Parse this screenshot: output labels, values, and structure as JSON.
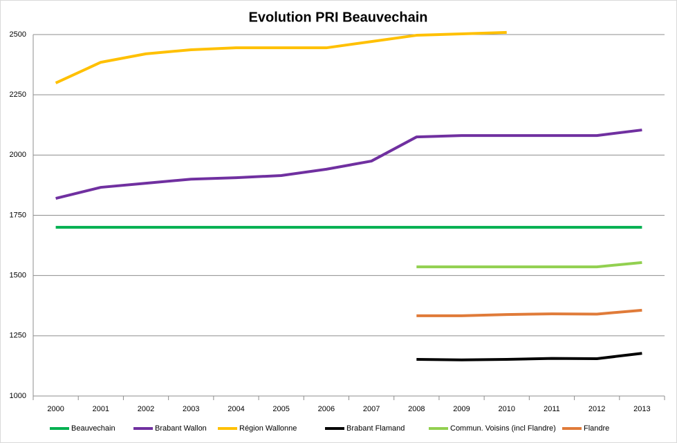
{
  "chart_data": {
    "type": "line",
    "title": "Evolution PRI Beauvechain",
    "categories": [
      "2000",
      "2001",
      "2002",
      "2003",
      "2004",
      "2005",
      "2006",
      "2007",
      "2008",
      "2009",
      "2010",
      "2011",
      "2012",
      "2013"
    ],
    "series": [
      {
        "name": "Beauvechain",
        "color": "#00b050",
        "values": [
          1700,
          1700,
          1700,
          1700,
          1700,
          1700,
          1700,
          1700,
          1700,
          1700,
          1700,
          1700,
          1700,
          1700
        ]
      },
      {
        "name": "Brabant Wallon",
        "color": "#7030a0",
        "values": [
          1820,
          1866,
          1883,
          1900,
          1906,
          1915,
          1941,
          1975,
          2075,
          2081,
          2081,
          2081,
          2081,
          2104
        ]
      },
      {
        "name": "Région Wallonne",
        "color": "#ffc000",
        "values": [
          2299,
          2385,
          2420,
          2437,
          2445,
          2445,
          2445,
          2471,
          2497,
          2503,
          2509,
          null,
          null,
          null
        ]
      },
      {
        "name": "Brabant Flamand",
        "color": "#000000",
        "values": [
          null,
          null,
          null,
          null,
          null,
          null,
          null,
          null,
          1152,
          1150,
          1152,
          1156,
          1155,
          1177
        ]
      },
      {
        "name": "Commun. Voisins (incl Flandre)",
        "color": "#92d050",
        "values": [
          null,
          null,
          null,
          null,
          null,
          null,
          null,
          null,
          1536,
          1536,
          1536,
          1536,
          1536,
          1554
        ]
      },
      {
        "name": "Flandre",
        "color": "#e07b39",
        "values": [
          null,
          null,
          null,
          null,
          null,
          null,
          null,
          null,
          1333,
          1333,
          1338,
          1341,
          1340,
          1356
        ]
      }
    ],
    "ylim": [
      1000,
      2500
    ],
    "yticks": [
      1000,
      1250,
      1500,
      1750,
      2000,
      2250,
      2500
    ],
    "grid": true,
    "legend": "bottom"
  }
}
